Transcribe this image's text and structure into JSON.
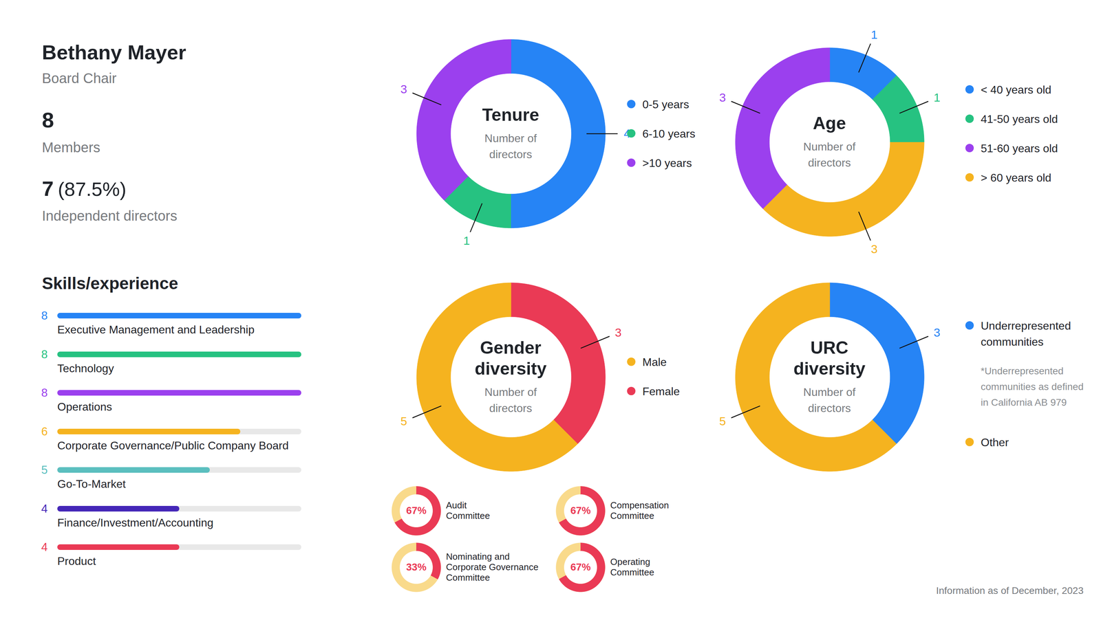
{
  "header": {
    "name": "Bethany Mayer",
    "role": "Board Chair",
    "members": {
      "value": 8,
      "label": "Members"
    },
    "independent": {
      "value": 7,
      "share": "(87.5%)",
      "label": "Independent directors"
    }
  },
  "footer": "Information as of December, 2023",
  "chart_data": [
    {
      "type": "bar",
      "title": "Skills/experience",
      "orientation": "horizontal",
      "categories": [
        "Executive Management and Leadership",
        "Technology",
        "Operations",
        "Corporate Governance/Public Company Board",
        "Go-To-Market",
        "Finance/Investment/Accounting",
        "Product"
      ],
      "values": [
        8,
        8,
        8,
        6,
        5,
        4,
        4
      ],
      "colors": [
        "#2684f5",
        "#26c281",
        "#9b40ee",
        "#f5b31f",
        "#5bbfbf",
        "#4527b8",
        "#ea3a55"
      ],
      "xlim": [
        0,
        8
      ],
      "tick_labels": false,
      "data_labels": true
    },
    {
      "type": "pie",
      "title": "Tenure",
      "subtitle": "Number of directors",
      "categories": [
        "0-5 years",
        "6-10 years",
        ">10 years"
      ],
      "values": [
        4,
        1,
        3
      ],
      "colors": [
        "#2684f5",
        "#26c281",
        "#9b40ee"
      ],
      "data_labels": true,
      "legend": "right"
    },
    {
      "type": "pie",
      "title": "Age",
      "subtitle": "Number of directors",
      "categories": [
        "< 40 years old",
        "41-50 years old",
        "51-60 years old",
        "> 60 years old"
      ],
      "values": [
        1,
        1,
        3,
        3
      ],
      "colors": [
        "#2684f5",
        "#26c281",
        "#9b40ee",
        "#f5b31f"
      ],
      "data_labels": true,
      "legend": "right"
    },
    {
      "type": "pie",
      "title": "Gender diversity",
      "subtitle": "Number of directors",
      "categories": [
        "Male",
        "Female"
      ],
      "values": [
        5,
        3
      ],
      "colors": [
        "#f5b31f",
        "#ea3a55"
      ],
      "data_labels": true,
      "legend": "right"
    },
    {
      "type": "pie",
      "title": "URC diversity",
      "subtitle": "Number of directors",
      "categories": [
        "Underrepresented communities",
        "Other"
      ],
      "values": [
        3,
        5
      ],
      "colors": [
        "#2684f5",
        "#f5b31f"
      ],
      "note": "*Underrepresented communities as defined in California AB 979",
      "data_labels": true,
      "legend": "right"
    },
    {
      "type": "pie",
      "title": "Audit\nCommittee",
      "values": [
        67
      ],
      "value_labels": [
        "67%"
      ],
      "ylim": [
        0,
        100
      ],
      "colors": [
        "#ea3a55",
        "#f9da8b"
      ],
      "data_labels": true
    },
    {
      "type": "pie",
      "title": "Compensation\nCommittee",
      "values": [
        67
      ],
      "value_labels": [
        "67%"
      ],
      "ylim": [
        0,
        100
      ],
      "colors": [
        "#ea3a55",
        "#f9da8b"
      ],
      "data_labels": true
    },
    {
      "type": "pie",
      "title": "Nominating and\nCorporate Governance\nCommittee",
      "values": [
        33
      ],
      "value_labels": [
        "33%"
      ],
      "ylim": [
        0,
        100
      ],
      "colors": [
        "#ea3a55",
        "#f9da8b"
      ],
      "data_labels": true
    },
    {
      "type": "pie",
      "title": "Operating\nCommittee",
      "values": [
        67
      ],
      "value_labels": [
        "67%"
      ],
      "ylim": [
        0,
        100
      ],
      "colors": [
        "#ea3a55",
        "#f9da8b"
      ],
      "data_labels": true
    }
  ]
}
